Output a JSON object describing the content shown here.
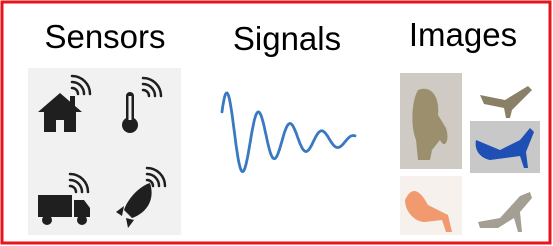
{
  "panels": [
    {
      "title": "Sensors"
    },
    {
      "title": "Signals"
    },
    {
      "title": "Images"
    }
  ]
}
